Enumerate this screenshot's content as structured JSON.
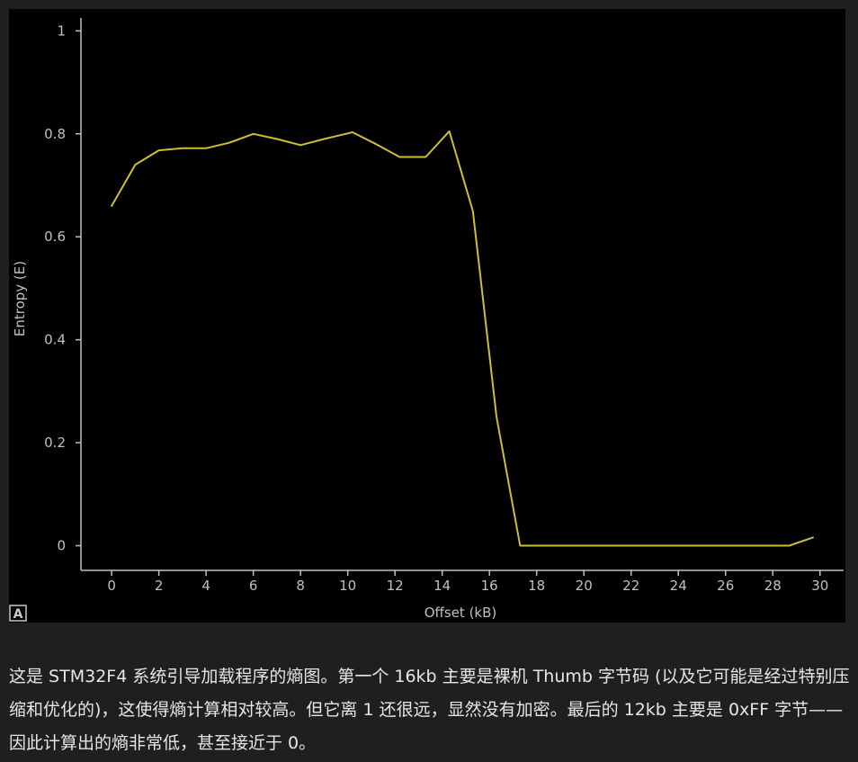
{
  "chart_data": {
    "type": "line",
    "xlabel": "Offset (kB)",
    "ylabel": "Entropy (E)",
    "xlim": [
      -1.3,
      31.0
    ],
    "ylim": [
      -0.048,
      1.025
    ],
    "x_ticks": [
      "0",
      "2",
      "4",
      "6",
      "8",
      "10",
      "12",
      "14",
      "16",
      "18",
      "20",
      "22",
      "24",
      "26",
      "28",
      "30"
    ],
    "y_ticks": [
      "0",
      "0.2",
      "0.4",
      "0.6",
      "0.8",
      "1"
    ],
    "grid": false,
    "legend": "none",
    "line_color": "#cdbf35",
    "series": [
      {
        "x": [
          0,
          1,
          2,
          3,
          4,
          5,
          6,
          7,
          8,
          9,
          10.2,
          11.2,
          12.2,
          13.3,
          14.3,
          15.3,
          16.3,
          17.3,
          18.4,
          19.4,
          20.4,
          21.4,
          22.4,
          23.5,
          24.5,
          25.5,
          26.5,
          27.5,
          28.7,
          29.7
        ],
        "y": [
          0.66,
          0.74,
          0.768,
          0.772,
          0.772,
          0.783,
          0.8,
          0.79,
          0.778,
          0.79,
          0.803,
          0.78,
          0.755,
          0.755,
          0.805,
          0.65,
          0.25,
          0.0,
          0.0,
          0.0,
          0.0,
          0.0,
          0.0,
          0.0,
          0.0,
          0.0,
          0.0,
          0.0,
          0.0,
          0.016
        ]
      }
    ]
  },
  "badge": "A",
  "caption": "这是 STM32F4 系统引导加载程序的熵图。第一个 16kb 主要是裸机 Thumb 字节码 (以及它可能是经过特别压缩和优化的)，这使得熵计算相对较高。但它离 1 还很远，显然没有加密。最后的 12kb 主要是 0xFF 字节——因此计算出的熵非常低，甚至接近于 0。"
}
